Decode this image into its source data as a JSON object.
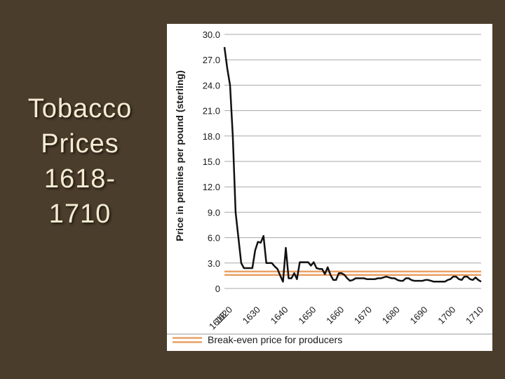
{
  "slide": {
    "title_lines": [
      "Tobacco",
      "Prices",
      "1618-",
      "1710"
    ]
  },
  "chart_data": {
    "type": "line",
    "title": "",
    "xlabel": "",
    "ylabel": "Price in pennies per pound (sterling)",
    "xlim": [
      1618,
      1710
    ],
    "ylim": [
      0,
      30
    ],
    "grid": true,
    "x_ticks": [
      "1618",
      "1620",
      "1630",
      "1640",
      "1650",
      "1660",
      "1670",
      "1680",
      "1690",
      "1700",
      "1710"
    ],
    "x_tick_values": [
      1618,
      1620,
      1630,
      1640,
      1650,
      1660,
      1670,
      1680,
      1690,
      1700,
      1710
    ],
    "y_ticks": [
      "0",
      "3.0",
      "6.0",
      "9.0",
      "12.0",
      "15.0",
      "18.0",
      "21.0",
      "24.0",
      "27.0",
      "30.0"
    ],
    "y_tick_values": [
      0,
      3,
      6,
      9,
      12,
      15,
      18,
      21,
      24,
      27,
      30
    ],
    "series": [
      {
        "color": "#111111",
        "x": [
          1618,
          1619,
          1620,
          1621,
          1622,
          1623,
          1624,
          1625,
          1626,
          1627,
          1628,
          1629,
          1630,
          1631,
          1632,
          1633,
          1634,
          1635,
          1636,
          1637,
          1638,
          1639,
          1640,
          1641,
          1642,
          1643,
          1644,
          1645,
          1646,
          1647,
          1648,
          1649,
          1650,
          1651,
          1652,
          1653,
          1654,
          1655,
          1656,
          1657,
          1658,
          1659,
          1660,
          1661,
          1662,
          1663,
          1664,
          1665,
          1666,
          1667,
          1668,
          1669,
          1670,
          1671,
          1672,
          1673,
          1674,
          1675,
          1676,
          1677,
          1678,
          1679,
          1680,
          1681,
          1682,
          1683,
          1684,
          1685,
          1686,
          1687,
          1688,
          1689,
          1690,
          1691,
          1692,
          1693,
          1694,
          1695,
          1696,
          1697,
          1698,
          1699,
          1700,
          1701,
          1702,
          1703,
          1704,
          1705,
          1706,
          1707,
          1708,
          1709,
          1710
        ],
        "values": [
          28.5,
          26.0,
          24.0,
          18.0,
          9.0,
          6.0,
          3.0,
          2.4,
          2.4,
          2.4,
          2.4,
          4.5,
          5.5,
          5.4,
          6.2,
          3.0,
          3.0,
          3.0,
          2.6,
          2.3,
          1.5,
          0.8,
          4.8,
          1.2,
          1.2,
          1.8,
          1.1,
          3.1,
          3.1,
          3.1,
          3.1,
          2.7,
          3.1,
          2.4,
          2.3,
          2.3,
          1.7,
          2.5,
          1.6,
          1.0,
          1.0,
          1.8,
          1.8,
          1.6,
          1.2,
          0.9,
          1.0,
          1.2,
          1.2,
          1.2,
          1.2,
          1.1,
          1.1,
          1.1,
          1.1,
          1.2,
          1.2,
          1.3,
          1.4,
          1.3,
          1.2,
          1.2,
          1.0,
          0.9,
          0.9,
          1.2,
          1.2,
          1.0,
          0.9,
          0.9,
          0.9,
          0.9,
          1.0,
          1.0,
          0.9,
          0.8,
          0.8,
          0.8,
          0.8,
          0.8,
          1.0,
          1.1,
          1.4,
          1.4,
          1.1,
          1.0,
          1.4,
          1.4,
          1.1,
          1.0,
          1.3,
          1.0,
          0.8
        ]
      }
    ],
    "break_even": {
      "label": "Break-even price for producers",
      "low": 1.6,
      "high": 2.0,
      "color": "#e8a064"
    }
  }
}
